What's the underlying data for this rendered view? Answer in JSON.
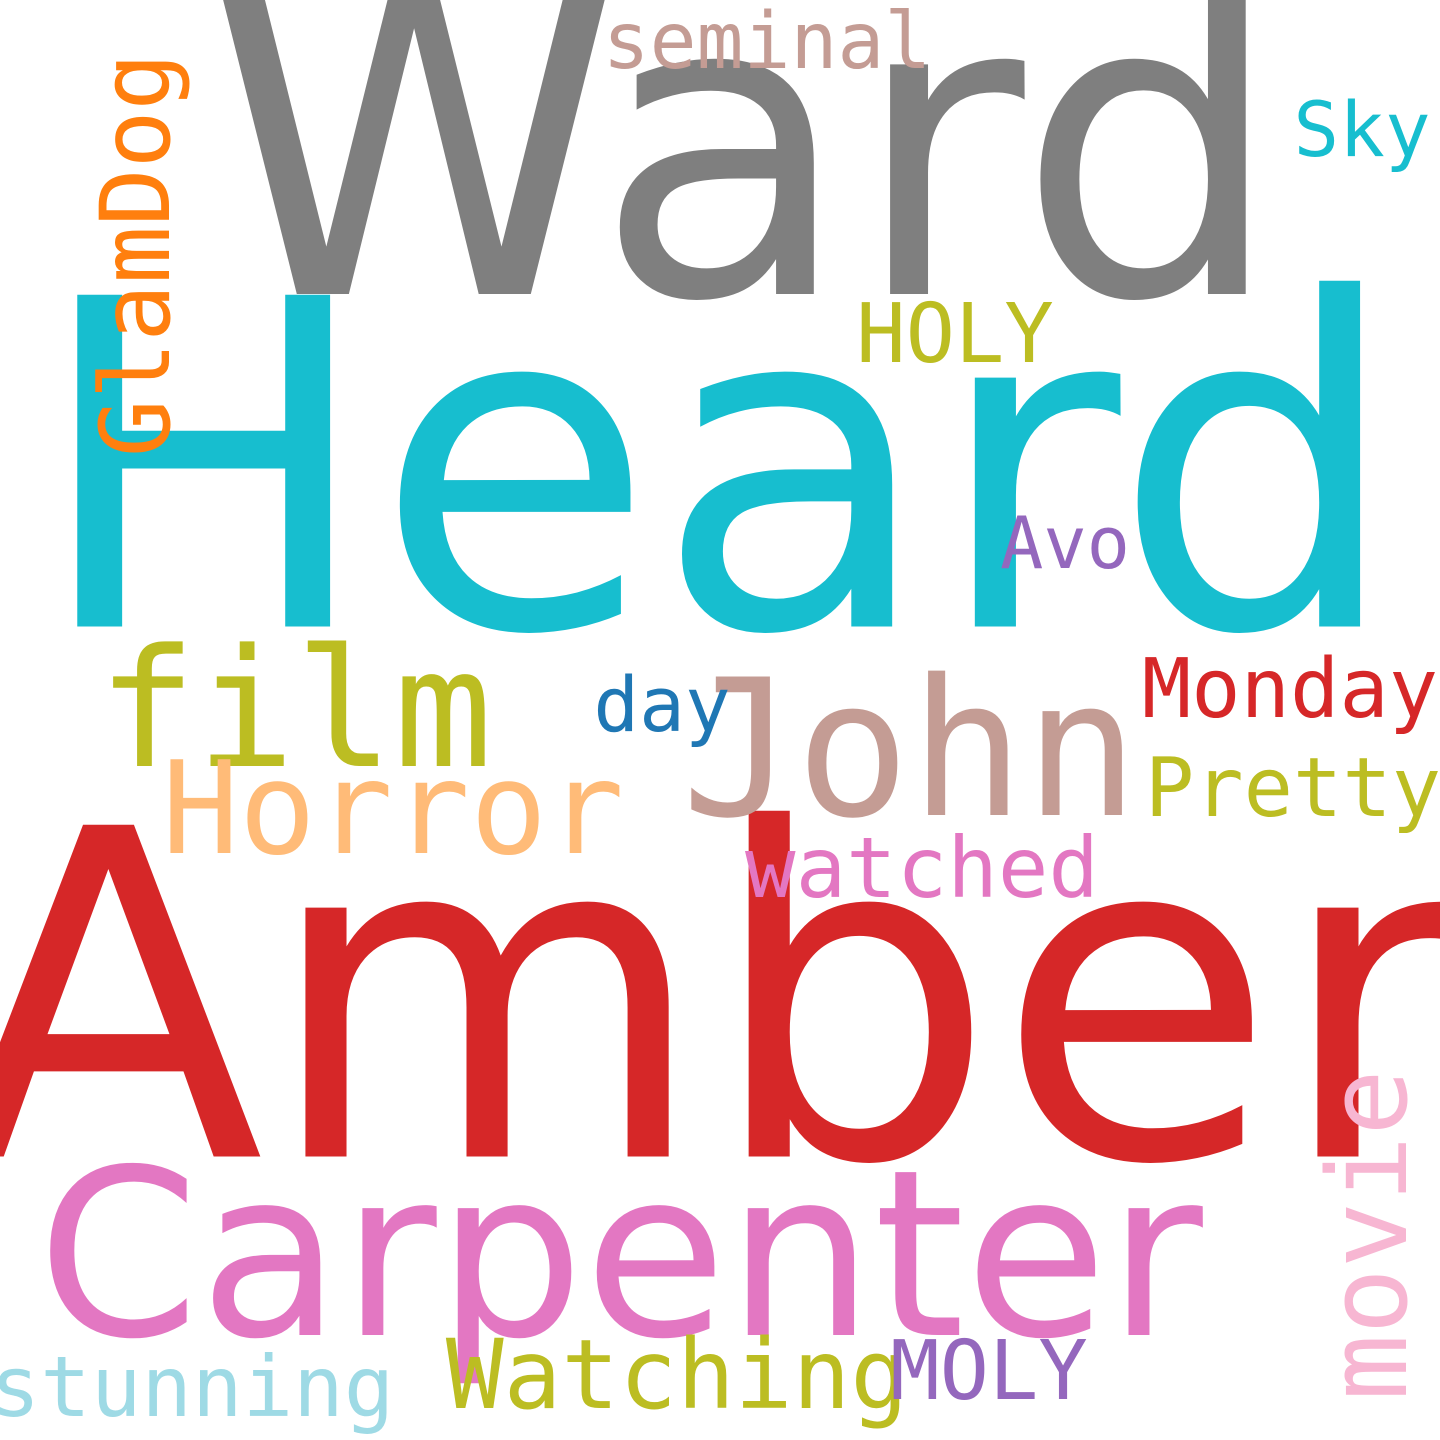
{
  "words": [
    {
      "text": "Heard",
      "color": "#17becf"
    },
    {
      "text": "Amber",
      "color": "#d62728"
    },
    {
      "text": "Ward",
      "color": "#7f7f7f"
    },
    {
      "text": "Carpenter",
      "color": "#e377c2"
    },
    {
      "text": "John",
      "color": "#c49c94"
    },
    {
      "text": "film",
      "color": "#bcbd22"
    },
    {
      "text": "Horror",
      "color": "#ffbb78"
    },
    {
      "text": "movie",
      "color": "#f7b6d2"
    },
    {
      "text": "GlamDog",
      "color": "#ff7f0e"
    },
    {
      "text": "Watching",
      "color": "#bcbd22"
    },
    {
      "text": "watched",
      "color": "#e377c2"
    },
    {
      "text": "stunning",
      "color": "#9edae5"
    },
    {
      "text": "Monday",
      "color": "#d62728"
    },
    {
      "text": "Pretty",
      "color": "#bcbd22"
    },
    {
      "text": "HOLY",
      "color": "#bcbd22"
    },
    {
      "text": "MOLY",
      "color": "#9467bd"
    },
    {
      "text": "seminal",
      "color": "#c49c94"
    },
    {
      "text": "day",
      "color": "#1f77b4"
    },
    {
      "text": "Sky",
      "color": "#17becf"
    },
    {
      "text": "Avo",
      "color": "#9467bd"
    }
  ]
}
